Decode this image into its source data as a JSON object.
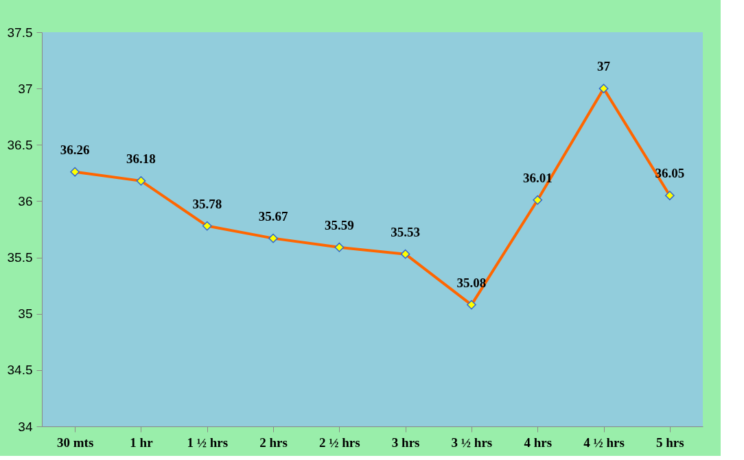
{
  "chart_data": {
    "type": "line",
    "categories": [
      "30 mts",
      "1 hr",
      "1 ½ hrs",
      "2 hrs",
      "2 ½ hrs",
      "3 hrs",
      "3 ½ hrs",
      "4 hrs",
      "4 ½ hrs",
      "5 hrs"
    ],
    "series": [
      {
        "color": "#ff6600",
        "values": [
          36.26,
          36.18,
          35.78,
          35.67,
          35.59,
          35.53,
          35.08,
          36.01,
          37,
          36.05
        ]
      }
    ],
    "ylim": [
      34,
      37.5
    ],
    "yticks": [
      34,
      34.5,
      35,
      35.5,
      36,
      36.5,
      37,
      37.5
    ],
    "grid": false,
    "marker": "diamond",
    "line_style": "solid",
    "data_labels": true
  }
}
